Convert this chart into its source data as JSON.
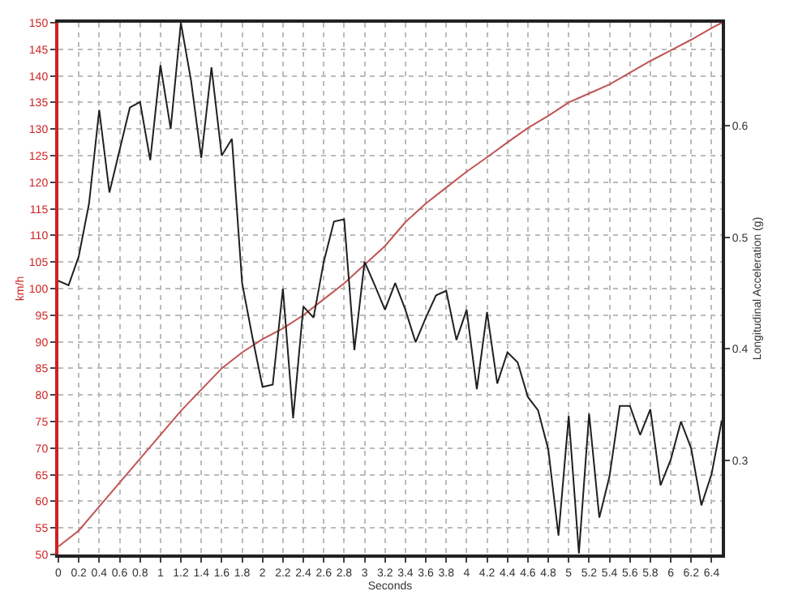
{
  "chart_data": {
    "type": "line",
    "xlabel": "Seconds",
    "ylabel": "km/h",
    "y2label": "Longitudinal Acceleration (g)",
    "xlim": [
      0,
      6.5
    ],
    "xticks": [
      0,
      0.2,
      0.4,
      0.6,
      0.8,
      1,
      1.2,
      1.4,
      1.6,
      1.8,
      2,
      2.2,
      2.4,
      2.6,
      2.8,
      3,
      3.2,
      3.4,
      3.6,
      3.8,
      4,
      4.2,
      4.4,
      4.6,
      4.8,
      5,
      5.2,
      5.4,
      5.6,
      5.8,
      6,
      6.2,
      6.4
    ],
    "ylim": [
      50,
      150
    ],
    "yticks": [
      50,
      55,
      60,
      65,
      70,
      75,
      80,
      85,
      90,
      95,
      100,
      105,
      110,
      115,
      120,
      125,
      130,
      135,
      140,
      145,
      150
    ],
    "y2lim": [
      0.216,
      0.692
    ],
    "y2ticks": [
      0.3,
      0.4,
      0.5,
      0.6
    ],
    "grid": true,
    "marker": "none",
    "line_style": "solid",
    "series": [
      {
        "color": "#c05454",
        "x": [
          0,
          0.2,
          0.4,
          0.6,
          0.8,
          1,
          1.2,
          1.4,
          1.6,
          1.8,
          2,
          2.2,
          2.4,
          2.6,
          2.8,
          3,
          3.2,
          3.4,
          3.6,
          3.8,
          4,
          4.2,
          4.4,
          4.6,
          4.8,
          5,
          5.2,
          5.4,
          5.6,
          5.8,
          6,
          6.2,
          6.4,
          6.5
        ],
        "values": [
          51.5,
          54.5,
          59,
          63.5,
          68,
          72.5,
          77,
          81,
          85,
          88,
          90.5,
          92.5,
          95,
          98,
          101,
          104.5,
          108,
          112.5,
          116,
          119,
          122,
          124.7,
          127.5,
          130.2,
          132.5,
          135,
          136.7,
          138.4,
          140.6,
          142.8,
          144.8,
          146.8,
          149,
          150
        ]
      },
      {
        "color": "#202020",
        "axis": "y2",
        "x": [
          0,
          0.1,
          0.2,
          0.3,
          0.4,
          0.5,
          0.6,
          0.7,
          0.8,
          0.9,
          1,
          1.1,
          1.2,
          1.3,
          1.4,
          1.5,
          1.6,
          1.7,
          1.8,
          1.9,
          2,
          2.1,
          2.2,
          2.3,
          2.4,
          2.5,
          2.6,
          2.7,
          2.8,
          2.9,
          3,
          3.1,
          3.2,
          3.3,
          3.4,
          3.5,
          3.6,
          3.7,
          3.8,
          3.9,
          4,
          4.1,
          4.2,
          4.3,
          4.4,
          4.5,
          4.6,
          4.7,
          4.8,
          4.9,
          5,
          5.1,
          5.2,
          5.3,
          5.4,
          5.5,
          5.6,
          5.7,
          5.8,
          5.9,
          6,
          6.1,
          6.2,
          6.3,
          6.4,
          6.5
        ],
        "values": [
          0.461,
          0.457,
          0.483,
          0.53,
          0.614,
          0.54,
          0.578,
          0.616,
          0.621,
          0.569,
          0.654,
          0.597,
          0.692,
          0.64,
          0.571,
          0.652,
          0.573,
          0.588,
          0.459,
          0.411,
          0.366,
          0.368,
          0.454,
          0.338,
          0.438,
          0.428,
          0.478,
          0.514,
          0.516,
          0.399,
          0.478,
          0.457,
          0.435,
          0.459,
          0.435,
          0.406,
          0.428,
          0.448,
          0.452,
          0.408,
          0.435,
          0.364,
          0.433,
          0.369,
          0.397,
          0.388,
          0.357,
          0.345,
          0.31,
          0.233,
          0.34,
          0.217,
          0.342,
          0.249,
          0.286,
          0.349,
          0.349,
          0.323,
          0.346,
          0.278,
          0.301,
          0.335,
          0.311,
          0.26,
          0.288,
          0.336
        ]
      }
    ]
  }
}
